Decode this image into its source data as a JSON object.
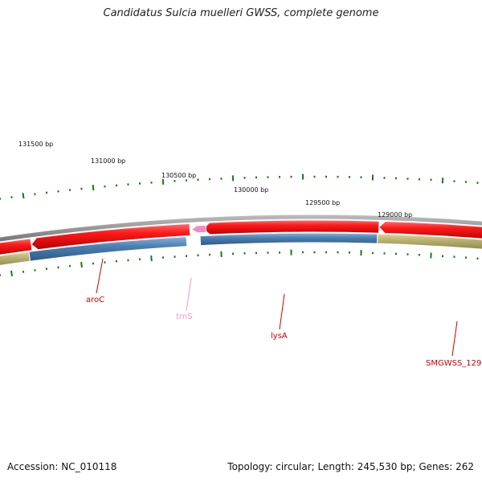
{
  "title": "Candidatus Sulcia muelleri GWSS, complete genome",
  "footer": {
    "accession": "Accession: NC_010118",
    "summary": "Topology: circular; Length: 245,530 bp; Genes: 262"
  },
  "ticks": [
    {
      "label": "131500 bp"
    },
    {
      "label": "131000 bp"
    },
    {
      "label": "130500 bp"
    },
    {
      "label": "130000 bp"
    },
    {
      "label": "129500 bp"
    },
    {
      "label": "129000 bp"
    }
  ],
  "genes": [
    {
      "name": "aroC",
      "color": "#cc0000"
    },
    {
      "name": "trnS",
      "color": "#f09cc8"
    },
    {
      "name": "lysA",
      "color": "#cc0000"
    },
    {
      "name": "SMGWSS_129",
      "color": "#cc0000"
    }
  ],
  "colors": {
    "backbone": "#8a8a8a",
    "cds": "#ee1111",
    "trna": "#f08cc4",
    "gene_blue": "#4a7fb0",
    "gene_olive": "#b8b070",
    "tick": "#1a7a1a"
  }
}
